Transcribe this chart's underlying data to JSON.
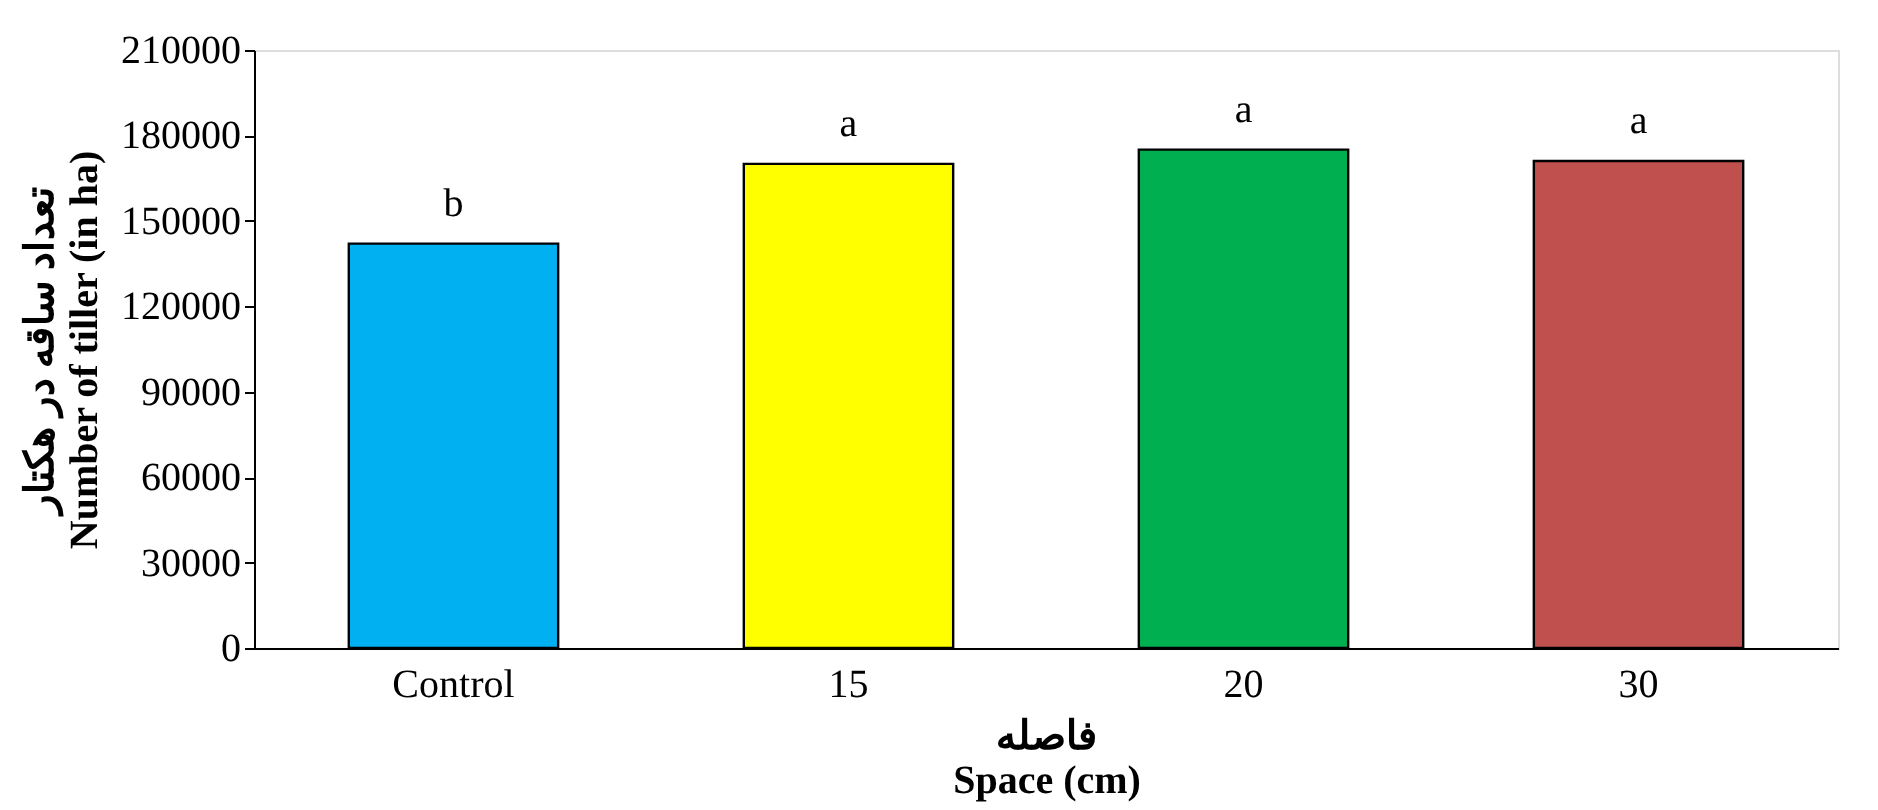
{
  "chart_data": {
    "type": "bar",
    "categories": [
      "Control",
      "15",
      "20",
      "30"
    ],
    "values": [
      142000,
      170000,
      175000,
      171000
    ],
    "colors": [
      "#00b0f0",
      "#ffff00",
      "#00b050",
      "#c0504d"
    ],
    "ylim": [
      0,
      210000
    ],
    "yticks": [
      0,
      30000,
      60000,
      90000,
      120000,
      150000,
      180000,
      210000
    ],
    "xlabel": "فاصله\nSpace (cm)",
    "ylabel": "تعداد ساقه در هکتار\nNumber of tiller (in ha)",
    "annotations": [
      {
        "text": "b",
        "x": "Control",
        "y": 142000
      },
      {
        "text": "a",
        "x": "15",
        "y": 170000
      },
      {
        "text": "a",
        "x": "20",
        "y": 175000
      },
      {
        "text": "a",
        "x": "30",
        "y": 171000
      }
    ],
    "grid": false
  }
}
